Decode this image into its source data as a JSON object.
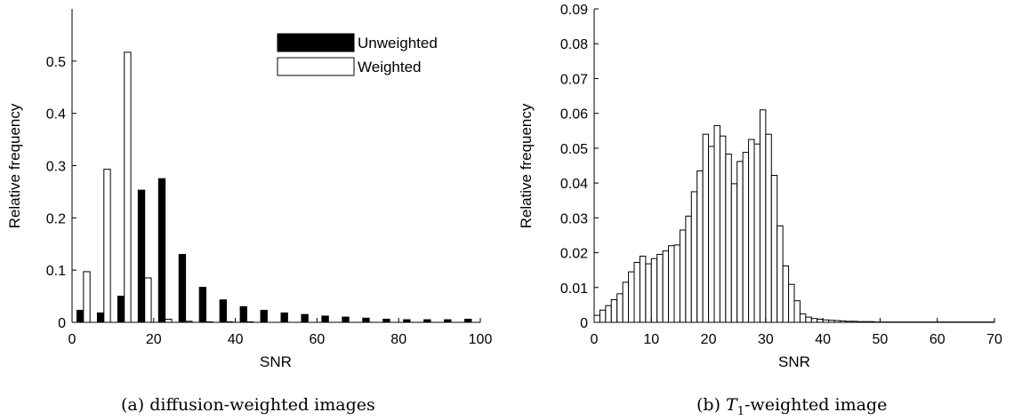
{
  "captions": {
    "a_label": "(a)",
    "a_text": "diffusion-weighted images",
    "b_label": "(b)",
    "b_var": "T",
    "b_sub": "1",
    "b_text": "-weighted image"
  },
  "chart_data": [
    {
      "type": "bar",
      "xlabel": "SNR",
      "ylabel": "Relative frequency",
      "xlim": [
        0,
        100
      ],
      "ylim": [
        0,
        0.6
      ],
      "xticks": [
        0,
        20,
        40,
        60,
        80,
        100
      ],
      "yticks": [
        0,
        0.1,
        0.2,
        0.3,
        0.4,
        0.5
      ],
      "legend_position": "top-right",
      "bar_width": 1.6,
      "series": [
        {
          "name": "Unweighted",
          "fill": "#000000",
          "x": [
            2,
            7,
            12,
            17,
            22,
            27,
            32,
            37,
            42,
            47,
            52,
            57,
            62,
            67,
            72,
            77,
            82,
            87,
            92,
            97
          ],
          "values": [
            0.023,
            0.018,
            0.05,
            0.253,
            0.275,
            0.13,
            0.067,
            0.043,
            0.03,
            0.023,
            0.018,
            0.015,
            0.012,
            0.01,
            0.008,
            0.006,
            0.005,
            0.005,
            0.005,
            0.006
          ]
        },
        {
          "name": "Weighted",
          "fill": "#ffffff",
          "x": [
            3.6,
            8.6,
            13.6,
            18.6,
            23.6,
            28.6,
            33.6,
            38.6,
            43.6,
            48.6,
            53.6,
            58.6,
            63.6,
            68.6,
            73.6,
            78.6,
            83.6,
            88.6,
            93.6,
            98.6
          ],
          "values": [
            0.097,
            0.293,
            0.517,
            0.085,
            0.006,
            0.002,
            0.001,
            0.001,
            0.001,
            0.0,
            0.0,
            0.0,
            0.0,
            0.0,
            0.0,
            0.0,
            0.0,
            0.0,
            0.0,
            0.0
          ]
        }
      ]
    },
    {
      "type": "bar",
      "xlabel": "SNR",
      "ylabel": "Relative frequency",
      "xlim": [
        0,
        70
      ],
      "ylim": [
        0,
        0.09
      ],
      "xticks": [
        0,
        10,
        20,
        30,
        40,
        50,
        60,
        70
      ],
      "yticks": [
        0,
        0.01,
        0.02,
        0.03,
        0.04,
        0.05,
        0.06,
        0.07,
        0.08,
        0.09
      ],
      "bin_start": 0,
      "bin_width": 1,
      "values": [
        0.002,
        0.0035,
        0.0048,
        0.0065,
        0.0082,
        0.0115,
        0.0145,
        0.0172,
        0.019,
        0.0168,
        0.0183,
        0.0195,
        0.0205,
        0.022,
        0.0222,
        0.0265,
        0.0305,
        0.0375,
        0.0435,
        0.054,
        0.0505,
        0.0565,
        0.0535,
        0.0483,
        0.0398,
        0.0462,
        0.0488,
        0.0525,
        0.0512,
        0.061,
        0.054,
        0.0422,
        0.0277,
        0.0162,
        0.0109,
        0.0062,
        0.0024,
        0.0015,
        0.0011,
        0.0009,
        0.0007,
        0.0006,
        0.0005,
        0.0004,
        0.0003,
        0.0003,
        0.0002,
        0.0002,
        0.0002,
        0.0001,
        0.0001,
        0.0001,
        0.0001,
        0.0001,
        0.0001,
        0.0001,
        0.0001,
        0.0001,
        0.0001,
        0.0001,
        0.0001,
        0.0001,
        0.0001,
        0.0001,
        0.0001,
        0.0001,
        0.0001,
        0.0001,
        0.0001,
        0.0001
      ]
    }
  ]
}
